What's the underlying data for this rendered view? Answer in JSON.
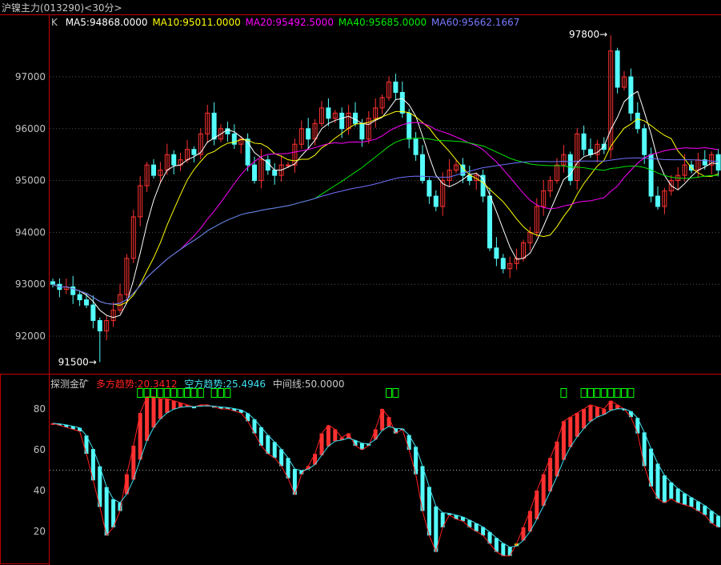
{
  "header": {
    "title": "沪镍主力(013290)<30分>"
  },
  "legend": {
    "k_label": "K",
    "ma5": "MA5:94868.0000",
    "ma10": "MA10:95011.0000",
    "ma20": "MA20:95492.5000",
    "ma40": "MA40:95685.0000",
    "ma60": "MA60:95662.1667"
  },
  "indicator_legend": {
    "name": "探测金矿",
    "bull": "多方趋势:20.3412",
    "bear": "空方趋势:25.4946",
    "mid": "中间线:50.0000"
  },
  "colors": {
    "up": "#ff3232",
    "down": "#54fcfc",
    "ma5": "#ffffff",
    "ma10": "#ffff00",
    "ma20": "#ff00ff",
    "ma40": "#00e600",
    "ma60": "#7070ff",
    "border": "#c00000",
    "signal": "#00ff00",
    "highlight": "#ffff00"
  },
  "chart_data": [
    {
      "type": "candlestick",
      "ylim": [
        91300,
        97900
      ],
      "yticks": [
        "97000",
        "96000",
        "95000",
        "94000",
        "93000",
        "92000"
      ],
      "grid": true,
      "annotations": [
        {
          "label": "97800",
          "index": 83,
          "value": 97800
        },
        {
          "label": "91500",
          "index": 7,
          "value": 91500
        }
      ],
      "close": [
        93000,
        92900,
        92950,
        92800,
        92700,
        92600,
        92300,
        92100,
        92300,
        92500,
        92800,
        93500,
        94300,
        94900,
        95300,
        95100,
        95200,
        95500,
        95300,
        95400,
        95600,
        95500,
        95900,
        96300,
        95800,
        96000,
        95900,
        95700,
        95800,
        95300,
        95000,
        95400,
        95200,
        95100,
        95300,
        95300,
        95700,
        96000,
        95800,
        96100,
        96400,
        96200,
        96300,
        96000,
        96300,
        96100,
        95800,
        96200,
        96400,
        96600,
        96900,
        96700,
        96300,
        95800,
        95500,
        95000,
        94700,
        94500,
        95000,
        95200,
        95300,
        95100,
        95000,
        95100,
        94700,
        93700,
        93500,
        93300,
        93400,
        93500,
        93800,
        94000,
        94500,
        94800,
        95000,
        95300,
        95500,
        95000,
        95900,
        95600,
        95500,
        95700,
        95600,
        97500,
        96800,
        97000,
        96300,
        96000,
        95500,
        94700,
        94500,
        94800,
        95000,
        95100,
        95300,
        95200,
        95400,
        95300,
        95500,
        95200
      ]
    },
    {
      "type": "bar",
      "ylim": [
        0,
        100
      ],
      "yticks": [
        "80",
        "60",
        "40",
        "20"
      ],
      "midline": 50,
      "values": [
        73,
        72,
        71,
        70,
        69,
        58,
        45,
        32,
        18,
        22,
        30,
        48,
        62,
        78,
        86,
        86,
        85,
        85,
        84,
        83,
        82,
        81,
        82,
        82,
        81,
        80,
        80,
        79,
        78,
        74,
        68,
        62,
        58,
        56,
        52,
        46,
        38,
        48,
        52,
        58,
        68,
        72,
        70,
        66,
        68,
        62,
        60,
        62,
        70,
        80,
        76,
        68,
        70,
        60,
        48,
        30,
        18,
        10,
        22,
        28,
        26,
        25,
        22,
        20,
        18,
        14,
        10,
        8,
        8,
        14,
        22,
        30,
        40,
        48,
        56,
        64,
        74,
        76,
        78,
        80,
        82,
        81,
        80,
        84,
        82,
        80,
        76,
        68,
        52,
        42,
        36,
        34,
        36,
        34,
        33,
        32,
        30,
        28,
        24,
        22
      ],
      "highlight_index": 69,
      "signal_indices": [
        13,
        14,
        15,
        16,
        17,
        18,
        19,
        20,
        21,
        22,
        24,
        25,
        26,
        50,
        51,
        76,
        79,
        80,
        81,
        82,
        83,
        84,
        85,
        86
      ]
    }
  ]
}
